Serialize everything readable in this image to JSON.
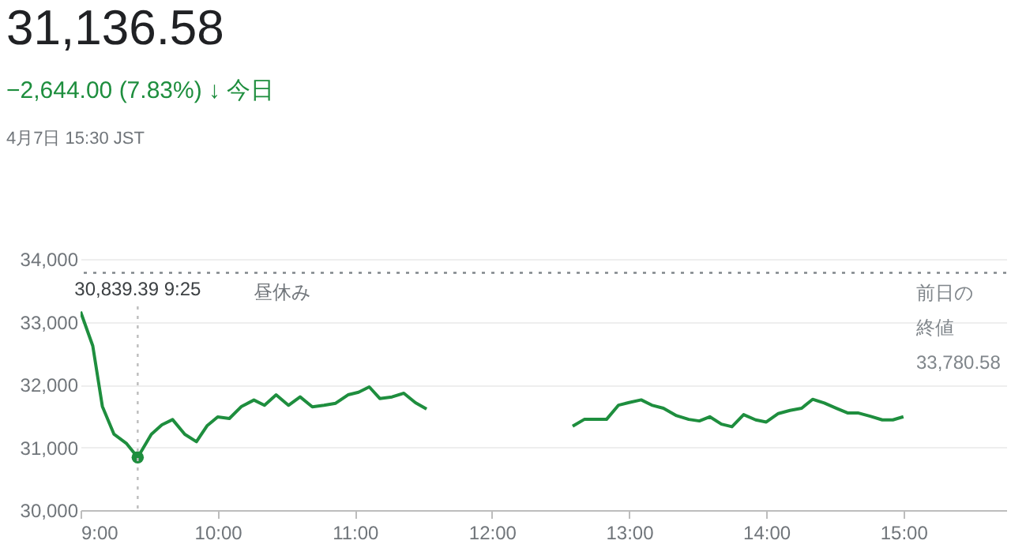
{
  "chart_data": {
    "type": "line",
    "title": "31,136.58",
    "subtitle": "−2,644.00 (7.83%) ↓ 今日",
    "annotations": [
      "4月7日 15:30 JST",
      "昼休み"
    ],
    "series": [
      {
        "color": "#1e8e3e",
        "x": [
          9,
          9.089,
          9.159,
          9.244,
          9.333,
          9.4167,
          9.516,
          9.593,
          9.671,
          9.76,
          9.845,
          9.922,
          10,
          10.085,
          10.174,
          10.264,
          10.341,
          10.426,
          10.516,
          10.601,
          10.69,
          10.775,
          10.86,
          10.95,
          11.027,
          11.105,
          11.182,
          11.271,
          11.357,
          11.442,
          11.523
        ],
        "values": [
          33161,
          32616,
          31652,
          31208,
          31065,
          30839.39,
          31208,
          31358,
          31442,
          31208,
          31090,
          31342,
          31484,
          31459,
          31652,
          31753,
          31669,
          31836,
          31669,
          31803,
          31644,
          31669,
          31702,
          31836,
          31878,
          31962,
          31778,
          31803,
          31862,
          31711,
          31610
        ]
      },
      {
        "type": "scatter",
        "marker": "circle",
        "color": "#1e8e3e",
        "x": [
          9.4167
        ],
        "values": [
          30839.39
        ]
      },
      {
        "color": "#1e8e3e",
        "x": [
          12.588,
          12.673,
          12.75,
          12.835,
          12.923,
          13,
          13.088,
          13.165,
          13.25,
          13.346,
          13.435,
          13.512,
          13.588,
          13.673,
          13.75,
          13.835,
          13.923,
          14,
          14.088,
          14.173,
          14.258,
          14.338,
          14.423,
          14.512,
          14.596,
          14.673,
          14.758,
          14.846,
          14.923,
          15
        ],
        "values": [
          31336,
          31445,
          31445,
          31445,
          31672,
          31714,
          31756,
          31672,
          31622,
          31504,
          31445,
          31420,
          31487,
          31370,
          31328,
          31521,
          31437,
          31403,
          31538,
          31588,
          31622,
          31765,
          31706,
          31622,
          31546,
          31546,
          31496,
          31437,
          31437,
          31487
        ]
      }
    ],
    "xlim": [
      9,
      15.75
    ],
    "xticks": [
      {
        "value": 9,
        "label": "9:00"
      },
      {
        "value": 10,
        "label": "10:00"
      },
      {
        "value": 11,
        "label": "11:00"
      },
      {
        "value": 12,
        "label": "12:00"
      },
      {
        "value": 13,
        "label": "13:00"
      },
      {
        "value": 14,
        "label": "14:00"
      },
      {
        "value": 15,
        "label": "15:00"
      }
    ],
    "ylim": [
      30000,
      34000
    ],
    "yticks": [
      {
        "value": 30000,
        "label": "30,000"
      },
      {
        "value": 31000,
        "label": "31,000"
      },
      {
        "value": 32000,
        "label": "32,000"
      },
      {
        "value": 33000,
        "label": "33,000"
      },
      {
        "value": 34000,
        "label": "34,000"
      }
    ],
    "grid": "y",
    "ref_lines": [
      {
        "axis": "y",
        "value": 33780.58,
        "label": "前日の終値33,780.58",
        "color": "#80868b",
        "line_style": "dotted"
      },
      {
        "axis": "x",
        "value": 9.4167,
        "label": "30,839.39 9:25",
        "color": "#bdbdbd",
        "line_style": "dotted"
      }
    ]
  }
}
